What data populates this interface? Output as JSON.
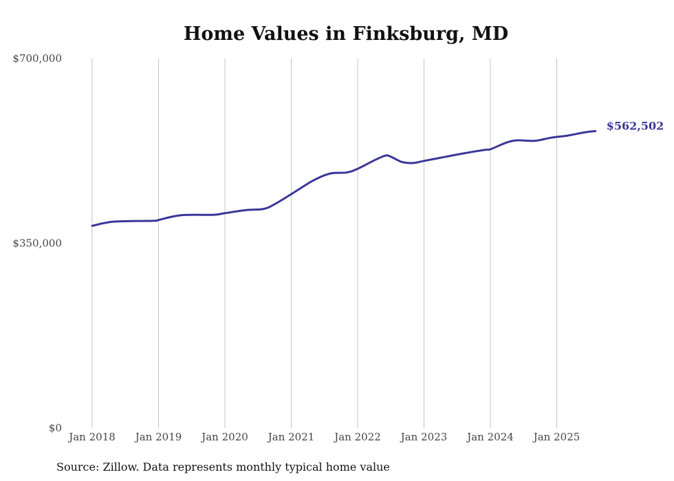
{
  "chart_data": {
    "type": "line",
    "title": "Home Values in Finksburg, MD",
    "xlabel": "",
    "ylabel": "",
    "ylim": [
      0,
      700000
    ],
    "y_ticks": [
      {
        "value": 0,
        "label": "$0"
      },
      {
        "value": 350000,
        "label": "$350,000"
      },
      {
        "value": 700000,
        "label": "$700,000"
      }
    ],
    "x_ticks": [
      {
        "value": "2018-01",
        "label": "Jan 2018"
      },
      {
        "value": "2019-01",
        "label": "Jan 2019"
      },
      {
        "value": "2020-01",
        "label": "Jan 2020"
      },
      {
        "value": "2021-01",
        "label": "Jan 2021"
      },
      {
        "value": "2022-01",
        "label": "Jan 2022"
      },
      {
        "value": "2023-01",
        "label": "Jan 2023"
      },
      {
        "value": "2024-01",
        "label": "Jan 2024"
      },
      {
        "value": "2025-01",
        "label": "Jan 2025"
      }
    ],
    "grid": "vertical",
    "series": [
      {
        "name": "Typical home value",
        "color": "#3a3699",
        "end_label": "$562,502",
        "points": [
          [
            "2018-01",
            383000
          ],
          [
            "2018-05",
            391000
          ],
          [
            "2018-12",
            392500
          ],
          [
            "2019-01",
            394000
          ],
          [
            "2019-05",
            403000
          ],
          [
            "2019-11",
            404000
          ],
          [
            "2020-01",
            407000
          ],
          [
            "2020-05",
            413000
          ],
          [
            "2020-08",
            415000
          ],
          [
            "2020-10",
            424000
          ],
          [
            "2021-01",
            443000
          ],
          [
            "2021-05",
            469000
          ],
          [
            "2021-08",
            482000
          ],
          [
            "2021-11",
            484000
          ],
          [
            "2022-01",
            491000
          ],
          [
            "2022-04",
            507000
          ],
          [
            "2022-06",
            516000
          ],
          [
            "2022-07",
            514000
          ],
          [
            "2022-09",
            504000
          ],
          [
            "2022-11",
            502000
          ],
          [
            "2023-01",
            506000
          ],
          [
            "2023-05",
            514000
          ],
          [
            "2023-08",
            520000
          ],
          [
            "2023-12",
            527000
          ],
          [
            "2024-01",
            528000
          ],
          [
            "2024-04",
            541000
          ],
          [
            "2024-06",
            545000
          ],
          [
            "2024-09",
            544000
          ],
          [
            "2024-12",
            550000
          ],
          [
            "2025-03",
            554000
          ],
          [
            "2025-06",
            560000
          ],
          [
            "2025-08",
            562502
          ]
        ]
      }
    ]
  },
  "source": "Source: Zillow. Data represents monthly typical home value"
}
